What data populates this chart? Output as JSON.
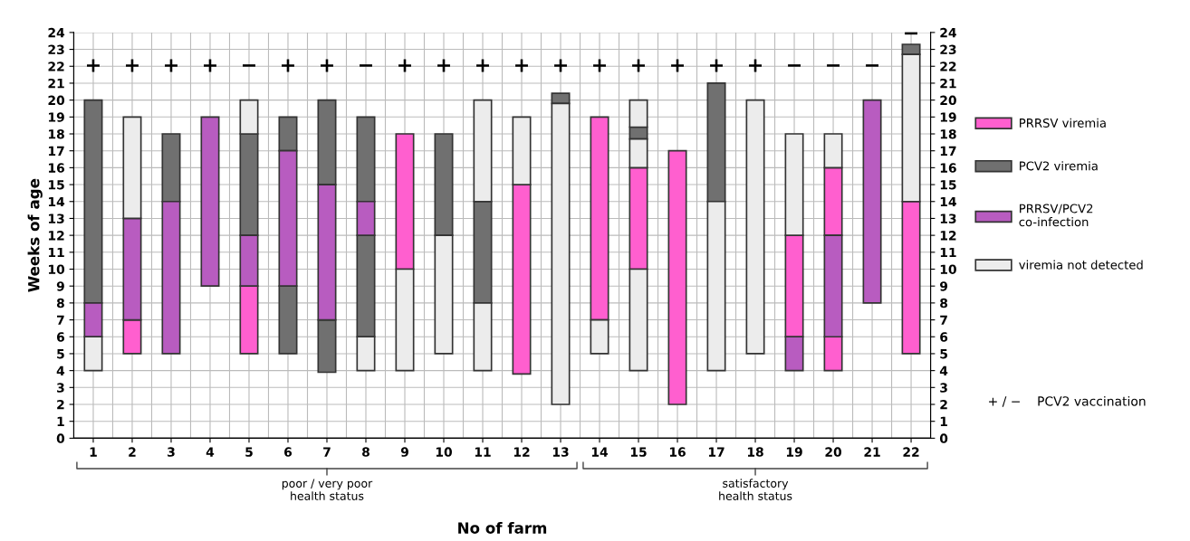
{
  "chart_data": {
    "type": "bar",
    "xlabel": "No of farm",
    "ylabel": "Weeks of age",
    "categories": [
      "1",
      "2",
      "3",
      "4",
      "5",
      "6",
      "7",
      "8",
      "9",
      "10",
      "11",
      "12",
      "13",
      "14",
      "15",
      "16",
      "17",
      "18",
      "19",
      "20",
      "21",
      "22"
    ],
    "series": [
      {
        "name": "PRRSV viremia",
        "color": "#ff5fcf",
        "x": [
          "2",
          "5",
          "9",
          "12",
          "14",
          "15",
          "16",
          "19",
          "20",
          "20",
          "22"
        ],
        "base": [
          5,
          5,
          10,
          3.8,
          7,
          10,
          2,
          6,
          4,
          12,
          5
        ],
        "values": [
          2,
          4,
          8,
          11.2,
          12,
          6,
          15,
          6,
          2,
          4,
          9
        ]
      },
      {
        "name": "PCV2 viremia",
        "color": "#707070",
        "x": [
          "1",
          "3",
          "5",
          "6",
          "6",
          "7",
          "7",
          "8",
          "8",
          "10",
          "11",
          "13",
          "15",
          "17",
          "22"
        ],
        "base": [
          8,
          14,
          12,
          5,
          17,
          3.9,
          15,
          6,
          14,
          12,
          8,
          19.8,
          17.7,
          14,
          22.7
        ],
        "values": [
          12,
          4,
          6,
          4,
          2,
          3.1,
          5,
          6,
          5,
          6,
          6,
          0.6,
          0.7,
          7,
          0.6
        ]
      },
      {
        "name": "PRRSV/PCV2\nco-infection",
        "color": "#b85cc0",
        "x": [
          "1",
          "2",
          "3",
          "4",
          "5",
          "6",
          "7",
          "8",
          "19",
          "20",
          "21"
        ],
        "base": [
          6,
          7,
          5,
          9,
          9,
          9,
          7,
          12,
          4,
          6,
          8
        ],
        "values": [
          2,
          6,
          9,
          10,
          3,
          8,
          8,
          2,
          2,
          6,
          12
        ]
      },
      {
        "name": "viremia not detected",
        "color": "#ececec",
        "x": [
          "1",
          "2",
          "5",
          "8",
          "9",
          "10",
          "11",
          "11",
          "12",
          "13",
          "14",
          "15",
          "15",
          "15",
          "17",
          "18",
          "19",
          "20",
          "22"
        ],
        "base": [
          4,
          13,
          18,
          4,
          4,
          5,
          4,
          14,
          15,
          2,
          5,
          4,
          16,
          18.4,
          4,
          5,
          12,
          16,
          14
        ],
        "values": [
          2,
          6,
          2,
          2,
          6,
          7,
          4,
          6,
          4,
          17.8,
          2,
          6,
          1.7,
          1.6,
          10,
          15,
          6,
          2,
          8.7
        ]
      }
    ],
    "ylim": [
      0,
      24
    ],
    "yticks": [
      0,
      1,
      2,
      3,
      4,
      5,
      6,
      7,
      8,
      9,
      10,
      11,
      12,
      13,
      14,
      15,
      16,
      17,
      18,
      19,
      20,
      21,
      22,
      23,
      24
    ],
    "y2lim": [
      0,
      24
    ],
    "y2ticks": [
      0,
      1,
      2,
      3,
      4,
      5,
      6,
      7,
      8,
      9,
      10,
      11,
      12,
      13,
      14,
      15,
      16,
      17,
      18,
      19,
      20,
      21,
      22,
      23,
      24
    ],
    "grid": true,
    "legend": "right",
    "annotations": [
      "+",
      "+",
      "+",
      "+",
      "−",
      "+",
      "+",
      "−",
      "+",
      "+",
      "+",
      "+",
      "+",
      "+",
      "+",
      "+",
      "+",
      "+",
      "−",
      "−",
      "−",
      "−",
      {
        "text": "poor / very poor\nhealth status",
        "x": "7"
      },
      {
        "text": "satisfactory\nhealth status",
        "x": "18"
      },
      "+ / −    PCV2 vaccination"
    ]
  }
}
